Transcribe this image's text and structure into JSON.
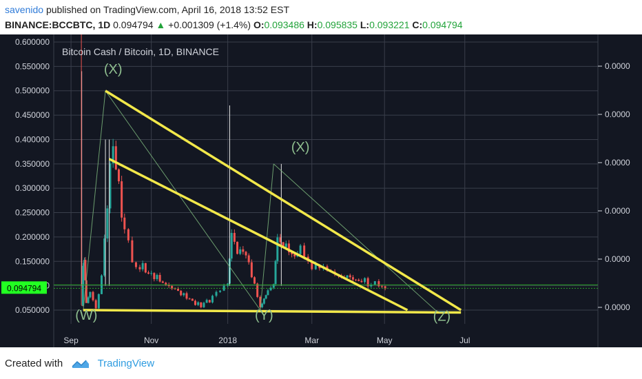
{
  "header": {
    "user": "savenido",
    "published_text": "published on TradingView.com, April 16, 2018 13:52 EST",
    "symbol": "BINANCE:BCCBTC, 1D",
    "last": "0.094794",
    "change": "+0.001309 (+1.4%)",
    "o_label": "O:",
    "o_value": "0.093486",
    "h_label": "H:",
    "h_value": "0.095835",
    "l_label": "L:",
    "l_value": "0.093221",
    "c_label": "C:",
    "c_value": "0.094794"
  },
  "chart": {
    "title": "Bitcoin Cash / Bitcoin, 1D, BINANCE",
    "price_tag": "0.094794",
    "left_ticks": [
      "0.600000",
      "0.550000",
      "0.500000",
      "0.450000",
      "0.400000",
      "0.350000",
      "0.300000",
      "0.250000",
      "0.200000",
      "0.150000",
      "0.100000",
      "0.050000"
    ],
    "right_ticks": [
      "0.0000",
      "0.0000",
      "0.0000",
      "0.0000",
      "0.0000",
      "0.0000"
    ],
    "x_ticks": [
      "Sep",
      "Nov",
      "2018",
      "Mar",
      "May",
      "Jul"
    ],
    "wave_labels": [
      "(X)",
      "(X)",
      "(W)",
      "(Y)",
      "(Z)"
    ]
  },
  "chart_data": {
    "type": "candlestick",
    "title": "Bitcoin Cash / Bitcoin, 1D, BINANCE",
    "x_ticks": [
      "Sep",
      "Nov",
      "2018",
      "Mar",
      "May",
      "Jul"
    ],
    "y_ticks": [
      0.6,
      0.55,
      0.5,
      0.45,
      0.4,
      0.35,
      0.3,
      0.25,
      0.2,
      0.15,
      0.1,
      0.05
    ],
    "ylim": [
      0.04,
      0.61
    ],
    "last_price": 0.094794,
    "price_path": [
      [
        0.5,
        0.06
      ],
      [
        0.52,
        0.14
      ],
      [
        0.55,
        0.16
      ],
      [
        0.6,
        0.06
      ],
      [
        0.7,
        0.09
      ],
      [
        0.85,
        0.05
      ],
      [
        1.0,
        0.12
      ],
      [
        1.15,
        0.28
      ],
      [
        1.3,
        0.38
      ],
      [
        1.45,
        0.3
      ],
      [
        1.6,
        0.22
      ],
      [
        1.8,
        0.15
      ],
      [
        2.0,
        0.14
      ],
      [
        2.3,
        0.125
      ],
      [
        2.6,
        0.105
      ],
      [
        3.0,
        0.09
      ],
      [
        3.3,
        0.07
      ],
      [
        3.6,
        0.06
      ],
      [
        3.9,
        0.075
      ],
      [
        4.1,
        0.09
      ],
      [
        4.3,
        0.11
      ],
      [
        4.4,
        0.2
      ],
      [
        4.55,
        0.17
      ],
      [
        4.7,
        0.18
      ],
      [
        4.85,
        0.14
      ],
      [
        5.0,
        0.1
      ],
      [
        5.15,
        0.06
      ],
      [
        5.25,
        0.07
      ],
      [
        5.35,
        0.09
      ],
      [
        5.5,
        0.1
      ],
      [
        5.6,
        0.2
      ],
      [
        5.75,
        0.18
      ],
      [
        5.9,
        0.17
      ],
      [
        6.05,
        0.165
      ],
      [
        6.2,
        0.175
      ],
      [
        6.4,
        0.15
      ],
      [
        6.6,
        0.14
      ],
      [
        6.8,
        0.13
      ],
      [
        7.0,
        0.13
      ],
      [
        7.2,
        0.12
      ],
      [
        7.5,
        0.115
      ],
      [
        7.8,
        0.11
      ],
      [
        8.05,
        0.105
      ],
      [
        8.25,
        0.1
      ],
      [
        8.5,
        0.096
      ]
    ],
    "spikes": [
      [
        0.48,
        0.54
      ],
      [
        1.1,
        0.4
      ],
      [
        1.2,
        0.4
      ],
      [
        4.35,
        0.47
      ],
      [
        5.7,
        0.35
      ]
    ],
    "lines": [
      {
        "name": "upper-trendline",
        "from": [
          1.1,
          0.5
        ],
        "to": [
          10.4,
          0.05
        ]
      },
      {
        "name": "middle-trendline",
        "from": [
          1.2,
          0.36
        ],
        "to": [
          9.0,
          0.05
        ]
      },
      {
        "name": "bottom-support",
        "from": [
          0.52,
          0.05
        ],
        "to": [
          10.4,
          0.045
        ]
      }
    ]
  },
  "footer": {
    "created_with": "Created with",
    "brand": "TradingView"
  },
  "colors": {
    "background": "#131722",
    "grid": "#3a3f4b",
    "up": "#26a69a",
    "down": "#ef5350",
    "trendline": "#f2e84a",
    "price_tag": "#22ff22"
  }
}
